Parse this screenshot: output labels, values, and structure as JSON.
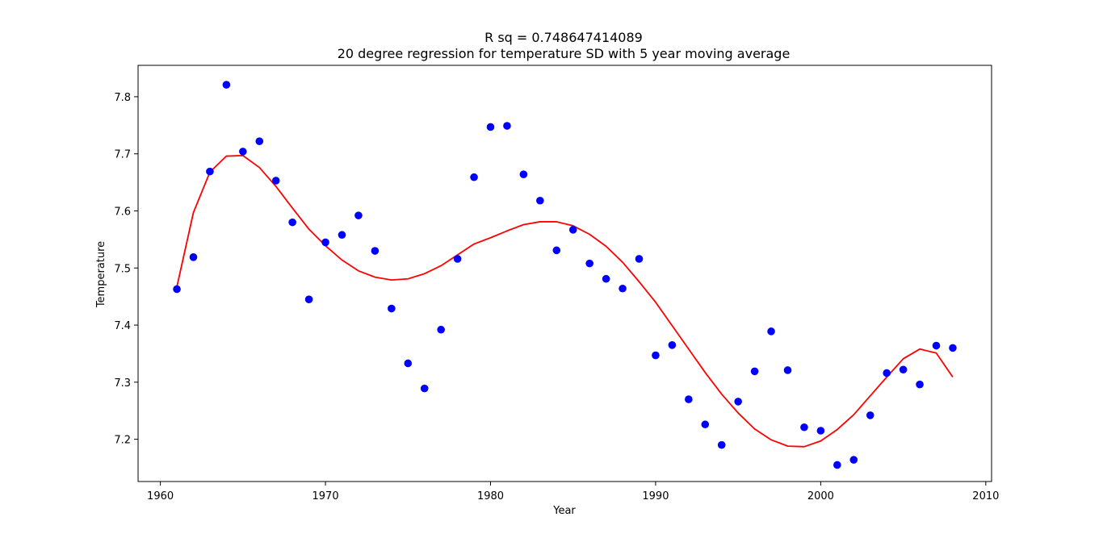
{
  "chart_data": {
    "type": "scatter",
    "title": "R sq = 0.748647414089",
    "subtitle": "20 degree regression for temperature SD with 5 year moving average",
    "xlabel": "Year",
    "ylabel": "Temperature",
    "xlim": [
      1958.65,
      2010.35
    ],
    "ylim": [
      7.126,
      7.855
    ],
    "xticks": [
      1960,
      1970,
      1980,
      1990,
      2000,
      2010
    ],
    "yticks": [
      7.2,
      7.3,
      7.4,
      7.5,
      7.6,
      7.7,
      7.8
    ],
    "ytick_labels": [
      "7.2",
      "7.3",
      "7.4",
      "7.5",
      "7.6",
      "7.7",
      "7.8"
    ],
    "grid": false,
    "colors": {
      "points": "#0000ff",
      "fit": "#ff0000",
      "axes": "#000000"
    },
    "series": [
      {
        "kind": "scatter",
        "x": [
          1961,
          1962,
          1963,
          1964,
          1965,
          1966,
          1967,
          1968,
          1969,
          1970,
          1971,
          1972,
          1973,
          1974,
          1975,
          1976,
          1977,
          1978,
          1979,
          1980,
          1981,
          1982,
          1983,
          1984,
          1985,
          1986,
          1987,
          1988,
          1989,
          1990,
          1991,
          1992,
          1993,
          1994,
          1995,
          1996,
          1997,
          1998,
          1999,
          2000,
          2001,
          2002,
          2003,
          2004,
          2005,
          2006,
          2007,
          2008
        ],
        "y": [
          7.463,
          7.519,
          7.669,
          7.821,
          7.704,
          7.722,
          7.653,
          7.58,
          7.445,
          7.545,
          7.558,
          7.592,
          7.53,
          7.429,
          7.333,
          7.289,
          7.392,
          7.516,
          7.659,
          7.747,
          7.749,
          7.664,
          7.618,
          7.531,
          7.567,
          7.508,
          7.481,
          7.464,
          7.516,
          7.347,
          7.365,
          7.27,
          7.226,
          7.19,
          7.266,
          7.319,
          7.389,
          7.321,
          7.221,
          7.215,
          7.155,
          7.164,
          7.242,
          7.316,
          7.322,
          7.296,
          7.364,
          7.36
        ]
      },
      {
        "kind": "line",
        "x": [
          1961,
          1962,
          1963,
          1964,
          1965,
          1966,
          1967,
          1968,
          1969,
          1970,
          1971,
          1972,
          1973,
          1974,
          1975,
          1976,
          1977,
          1978,
          1979,
          1980,
          1981,
          1982,
          1983,
          1984,
          1985,
          1986,
          1987,
          1988,
          1989,
          1990,
          1991,
          1992,
          1993,
          1994,
          1995,
          1996,
          1997,
          1998,
          1999,
          2000,
          2001,
          2002,
          2003,
          2004,
          2005,
          2006,
          2007,
          2008
        ],
        "y": [
          7.467,
          7.597,
          7.668,
          7.696,
          7.697,
          7.676,
          7.643,
          7.605,
          7.568,
          7.539,
          7.514,
          7.495,
          7.484,
          7.479,
          7.481,
          7.49,
          7.504,
          7.523,
          7.542,
          7.553,
          7.565,
          7.576,
          7.581,
          7.581,
          7.574,
          7.559,
          7.538,
          7.51,
          7.476,
          7.44,
          7.399,
          7.358,
          7.317,
          7.279,
          7.246,
          7.218,
          7.199,
          7.188,
          7.187,
          7.197,
          7.217,
          7.243,
          7.276,
          7.309,
          7.341,
          7.358,
          7.351,
          7.309
        ]
      }
    ]
  }
}
